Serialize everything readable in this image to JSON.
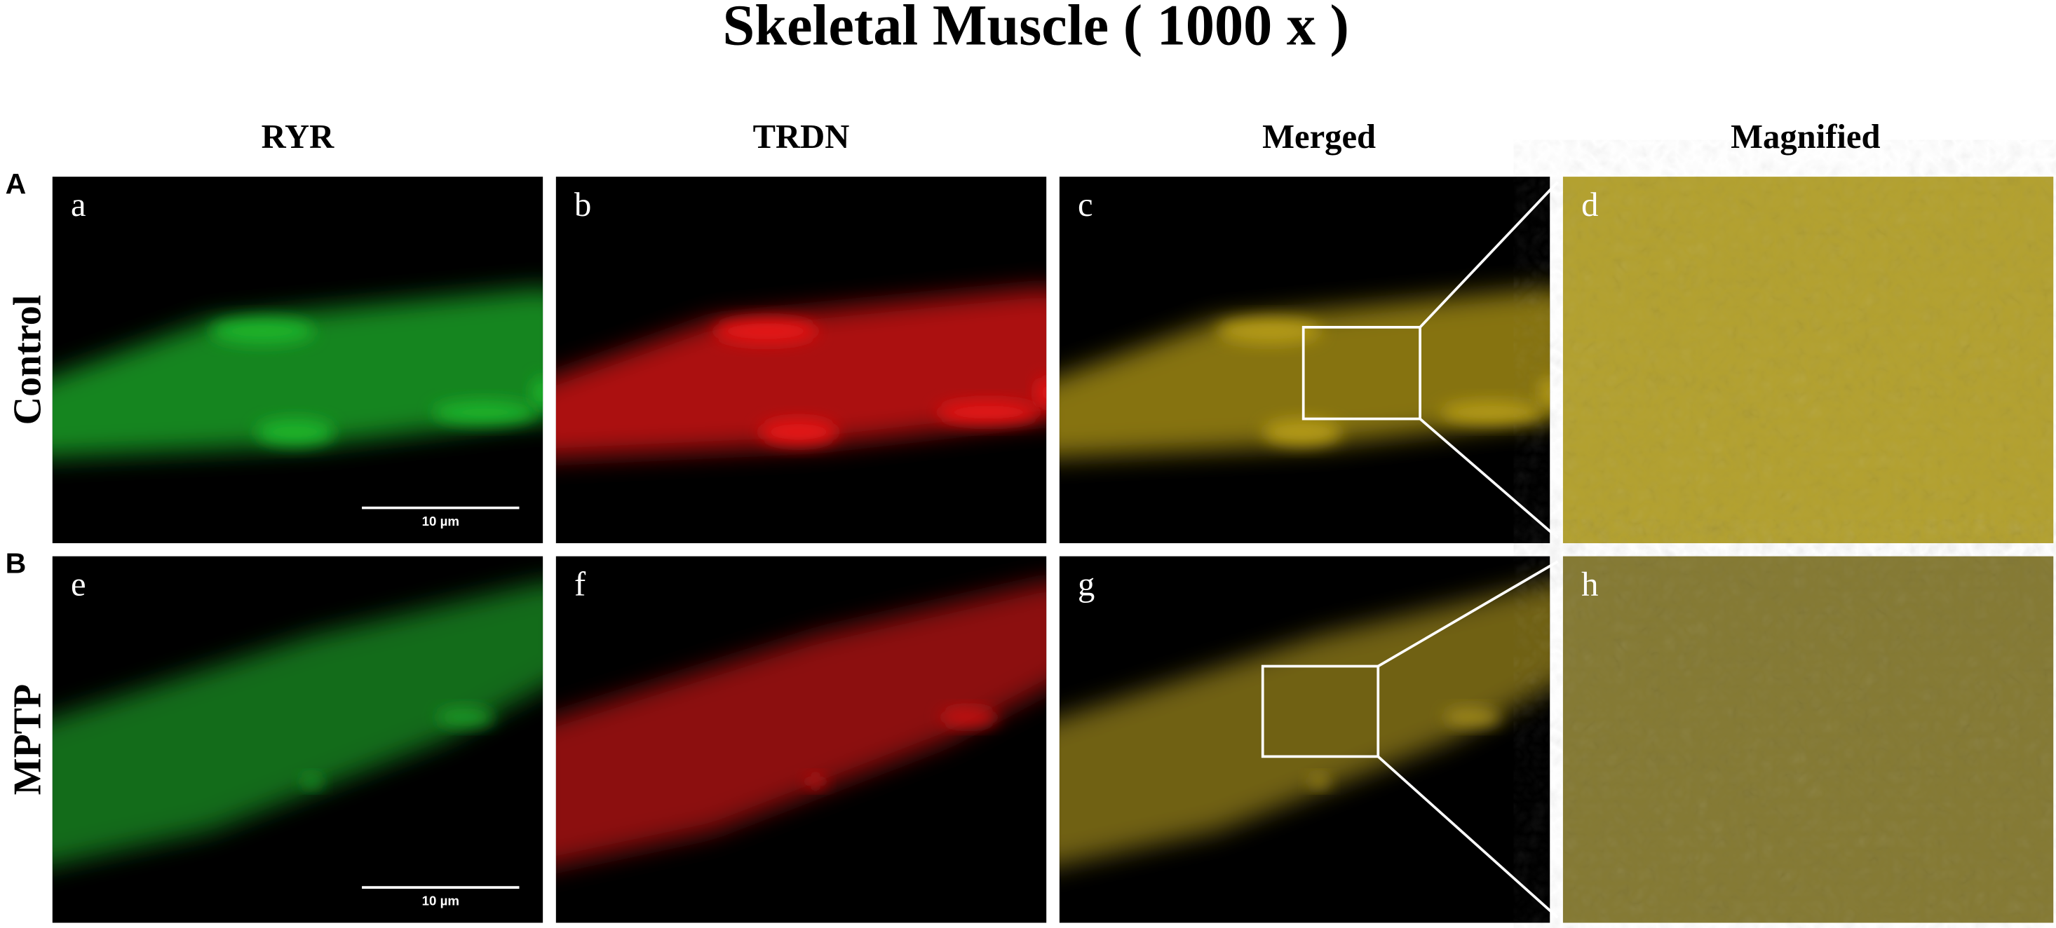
{
  "title": "Skeletal Muscle ( 1000 x )",
  "columns": [
    "RYR",
    "TRDN",
    "Merged",
    "Magnified"
  ],
  "rows": [
    {
      "letter": "A",
      "label": "Control",
      "panels": [
        "a",
        "b",
        "c",
        "d"
      ],
      "scale_bar": "10 µm"
    },
    {
      "letter": "B",
      "label": "MPTP",
      "panels": [
        "e",
        "f",
        "g",
        "h"
      ],
      "scale_bar": "10 µm"
    }
  ]
}
